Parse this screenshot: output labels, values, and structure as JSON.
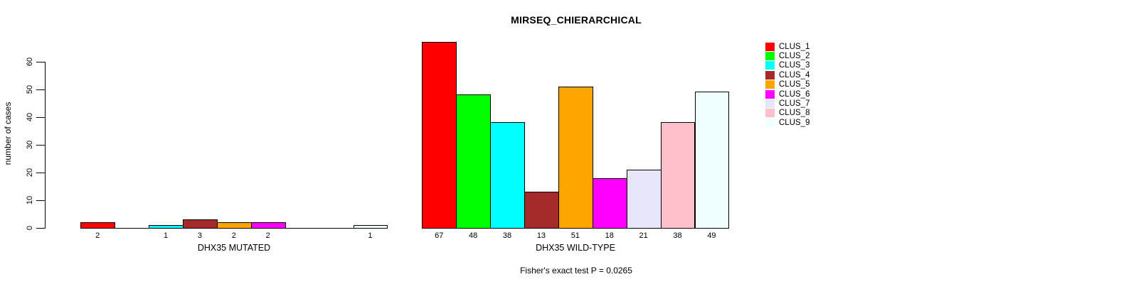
{
  "chart_data": {
    "type": "bar",
    "title": "MIRSEQ_CHIERARCHICAL",
    "ylabel": "number of cases",
    "ylim": [
      0,
      60
    ],
    "yticks": [
      0,
      10,
      20,
      30,
      40,
      50,
      60
    ],
    "grid": false,
    "legend_position": "right",
    "bar_outline_color": "#000000",
    "series_labels": [
      "CLUS_1",
      "CLUS_2",
      "CLUS_3",
      "CLUS_4",
      "CLUS_5",
      "CLUS_6",
      "CLUS_7",
      "CLUS_8",
      "CLUS_9"
    ],
    "series_colors": [
      "#FF0000",
      "#00FF00",
      "#00FFFF",
      "#A52A2A",
      "#FFA500",
      "#FF00FF",
      "#E6E6FA",
      "#FFC0CB",
      "#F0FFFF"
    ],
    "groups": [
      {
        "label": "DHX35 MUTATED",
        "values": [
          2,
          0,
          1,
          3,
          2,
          2,
          0,
          0,
          1
        ]
      },
      {
        "label": "DHX35 WILD-TYPE",
        "values": [
          67,
          48,
          38,
          13,
          51,
          18,
          21,
          38,
          49
        ]
      }
    ],
    "annotation": "Fisher's exact test P = 0.0265"
  }
}
